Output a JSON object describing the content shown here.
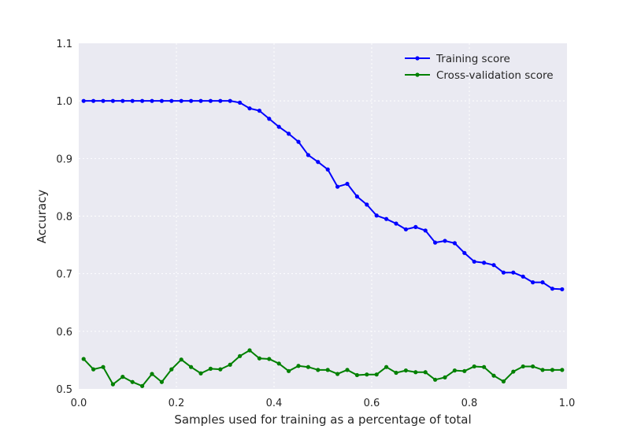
{
  "chart_data": {
    "type": "line",
    "title": "",
    "xlabel": "Samples used for training as a percentage of total",
    "ylabel": "Accuracy",
    "xlim": [
      0.0,
      1.0
    ],
    "ylim": [
      0.5,
      1.1
    ],
    "grid": true,
    "legend_position": "top-right",
    "x_ticks": [
      0.0,
      0.2,
      0.4,
      0.6,
      0.8,
      1.0
    ],
    "x_tick_labels": [
      "0.0",
      "0.2",
      "0.4",
      "0.6",
      "0.8",
      "1.0"
    ],
    "y_ticks": [
      0.5,
      0.6,
      0.7,
      0.8,
      0.9,
      1.0,
      1.1
    ],
    "y_tick_labels": [
      "0.5",
      "0.6",
      "0.7",
      "0.8",
      "0.9",
      "1.0",
      "1.1"
    ],
    "x": [
      0.01,
      0.03,
      0.05,
      0.07,
      0.09,
      0.11,
      0.13,
      0.15,
      0.17,
      0.19,
      0.21,
      0.23,
      0.25,
      0.27,
      0.29,
      0.31,
      0.33,
      0.35,
      0.37,
      0.39,
      0.41,
      0.43,
      0.45,
      0.47,
      0.49,
      0.51,
      0.53,
      0.55,
      0.57,
      0.59,
      0.61,
      0.63,
      0.65,
      0.67,
      0.69,
      0.71,
      0.73,
      0.75,
      0.77,
      0.79,
      0.81,
      0.83,
      0.85,
      0.87,
      0.89,
      0.91,
      0.93,
      0.95,
      0.97,
      0.99
    ],
    "series": [
      {
        "name": "Training score",
        "color": "#0000ff",
        "values": [
          1.0,
          1.0,
          1.0,
          1.0,
          1.0,
          1.0,
          1.0,
          1.0,
          1.0,
          1.0,
          1.0,
          1.0,
          1.0,
          1.0,
          1.0,
          1.0,
          0.997,
          0.987,
          0.983,
          0.969,
          0.955,
          0.943,
          0.929,
          0.906,
          0.894,
          0.881,
          0.851,
          0.856,
          0.834,
          0.82,
          0.801,
          0.795,
          0.787,
          0.777,
          0.781,
          0.775,
          0.754,
          0.757,
          0.753,
          0.736,
          0.721,
          0.719,
          0.715,
          0.702,
          0.702,
          0.695,
          0.685,
          0.685,
          0.674,
          0.673
        ]
      },
      {
        "name": "Cross-validation score",
        "color": "#008000",
        "values": [
          0.552,
          0.534,
          0.538,
          0.508,
          0.521,
          0.512,
          0.505,
          0.526,
          0.512,
          0.534,
          0.551,
          0.538,
          0.527,
          0.535,
          0.534,
          0.542,
          0.557,
          0.567,
          0.553,
          0.552,
          0.544,
          0.531,
          0.54,
          0.538,
          0.533,
          0.533,
          0.526,
          0.533,
          0.524,
          0.525,
          0.525,
          0.538,
          0.528,
          0.532,
          0.529,
          0.529,
          0.516,
          0.52,
          0.532,
          0.531,
          0.539,
          0.538,
          0.523,
          0.513,
          0.53,
          0.539,
          0.539,
          0.533,
          0.533,
          0.533
        ]
      }
    ]
  }
}
